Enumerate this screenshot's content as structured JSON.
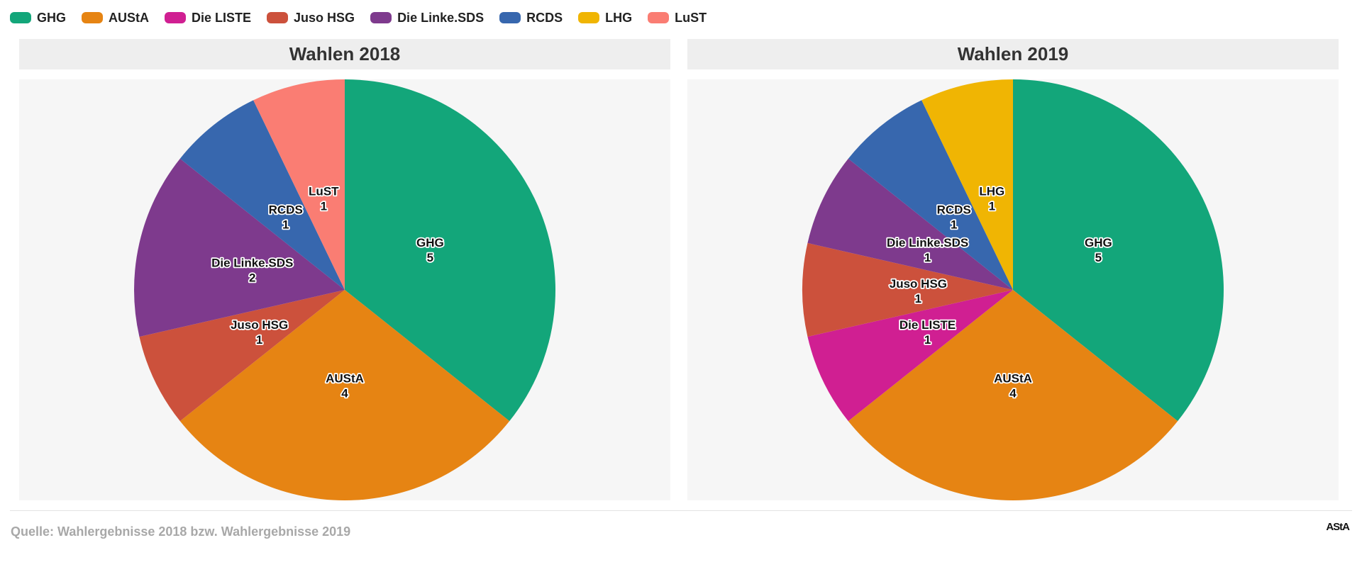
{
  "legend": [
    {
      "label": "GHG",
      "color": "#13a67a"
    },
    {
      "label": "AUStA",
      "color": "#e68413"
    },
    {
      "label": "Die LISTE",
      "color": "#d01f92"
    },
    {
      "label": "Juso HSG",
      "color": "#cc513c"
    },
    {
      "label": "Die Linke.SDS",
      "color": "#7e3a8d"
    },
    {
      "label": "RCDS",
      "color": "#3767ae"
    },
    {
      "label": "LHG",
      "color": "#f0b503"
    },
    {
      "label": "LuST",
      "color": "#fa7d73"
    }
  ],
  "chart_data": [
    {
      "type": "pie",
      "title": "Wahlen 2018",
      "labels": [
        "GHG",
        "AUStA",
        "Juso HSG",
        "Die Linke.SDS",
        "RCDS",
        "LuST"
      ],
      "values": [
        5,
        4,
        1,
        2,
        1,
        1
      ],
      "colors": [
        "#13a67a",
        "#e68413",
        "#cc513c",
        "#7e3a8d",
        "#3767ae",
        "#fa7d73"
      ],
      "legend": "top-left"
    },
    {
      "type": "pie",
      "title": "Wahlen 2019",
      "labels": [
        "GHG",
        "AUStA",
        "Die LISTE",
        "Juso HSG",
        "Die Linke.SDS",
        "RCDS",
        "LHG"
      ],
      "values": [
        5,
        4,
        1,
        1,
        1,
        1,
        1
      ],
      "colors": [
        "#13a67a",
        "#e68413",
        "#d01f92",
        "#cc513c",
        "#7e3a8d",
        "#3767ae",
        "#f0b503"
      ],
      "legend": "top-left"
    }
  ],
  "footer": {
    "source": "Quelle: Wahlergebnisse 2018 bzw. Wahlergebnisse 2019",
    "logo_text": "AStA"
  }
}
